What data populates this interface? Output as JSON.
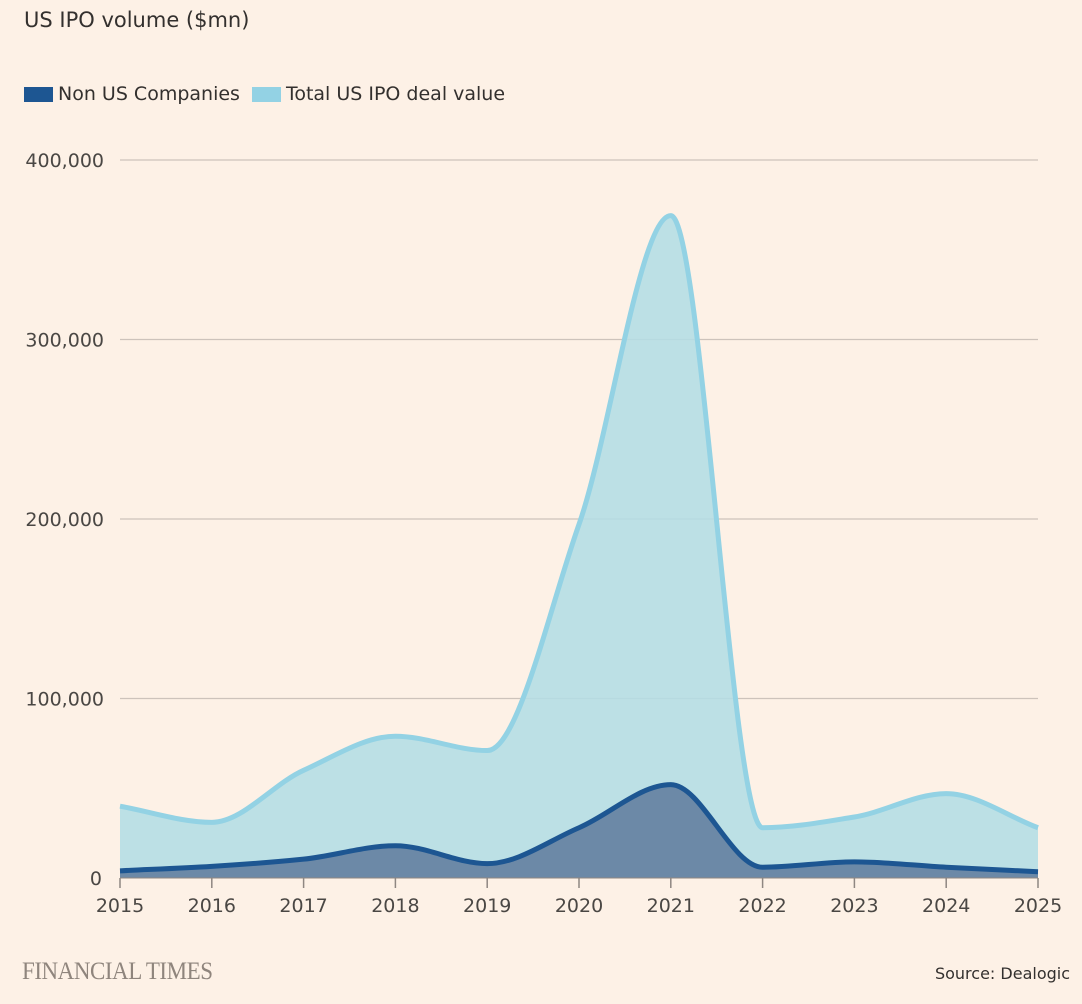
{
  "footer": {
    "brand": "FINANCIAL TIMES",
    "source": "Source: Dealogic"
  },
  "colors": {
    "background": "#fdf1e6",
    "non_us_line": "#1d5692",
    "non_us_fill": "#6784a3",
    "total_line": "#93d2e4",
    "total_fill": "#b3dde5",
    "grid": "#cdc3bb",
    "axis": "#8f8782"
  },
  "chart_data": {
    "type": "area",
    "title": "US IPO volume ($mn)",
    "xlabel": "",
    "ylabel": "",
    "x": [
      "2015",
      "2016",
      "2017",
      "2018",
      "2019",
      "2020",
      "2021",
      "2022",
      "2023",
      "2024",
      "2025"
    ],
    "ylim": [
      0,
      400000
    ],
    "yticks": [
      0,
      100000,
      200000,
      300000,
      400000
    ],
    "ytick_labels": [
      "0",
      "100,000",
      "200,000",
      "300,000",
      "400,000"
    ],
    "grid": true,
    "legend_position": "top-left",
    "series": [
      {
        "name": "Non US Companies",
        "values": [
          4000,
          6500,
          10500,
          18000,
          8000,
          28000,
          52000,
          6000,
          9000,
          6000,
          3500
        ]
      },
      {
        "name": "Total US IPO deal value",
        "values": [
          40000,
          31000,
          60000,
          79000,
          71000,
          197000,
          369000,
          28000,
          34000,
          47000,
          28000
        ]
      }
    ]
  }
}
